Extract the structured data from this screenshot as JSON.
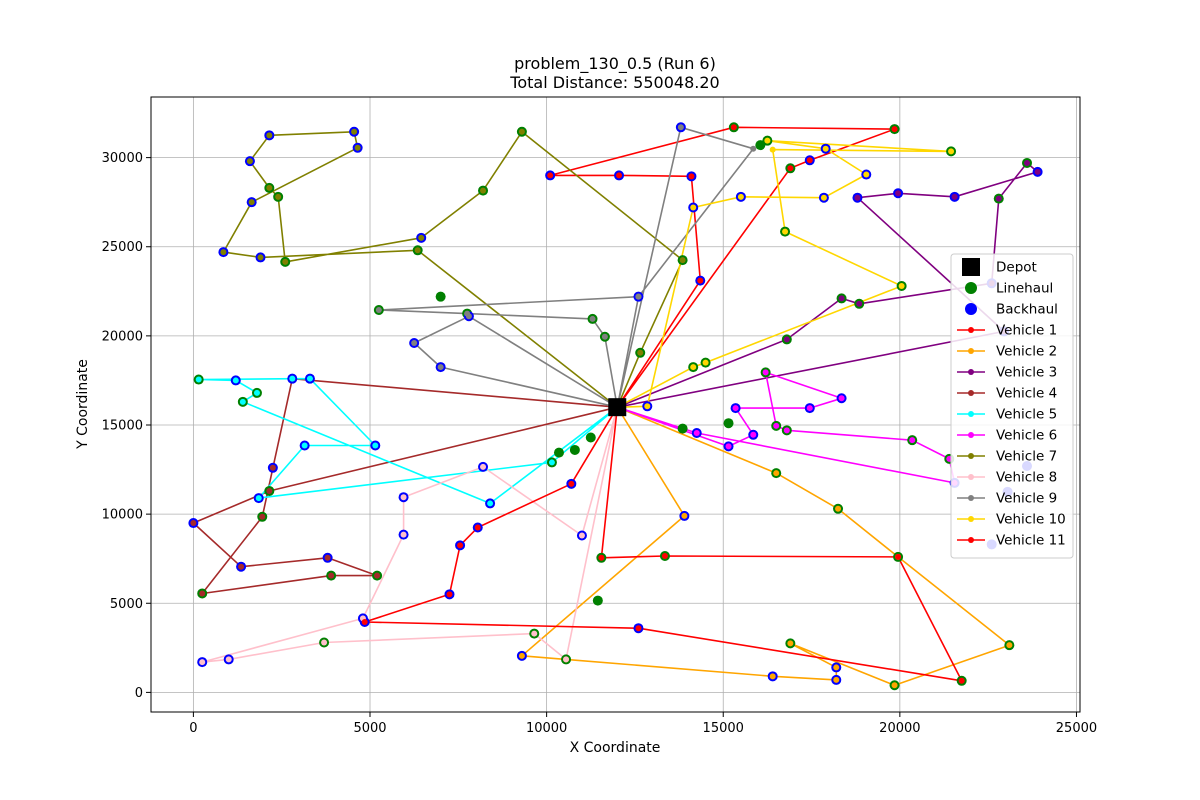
{
  "chart_data": {
    "type": "scatter",
    "title": "problem_130_0.5 (Run 6)",
    "subtitle": "Total Distance: 550048.20",
    "xlabel": "X Coordinate",
    "ylabel": "Y Coordinate",
    "xlim": [
      -1200,
      25100
    ],
    "ylim": [
      -1100,
      33400
    ],
    "xticks": [
      0,
      5000,
      10000,
      15000,
      20000,
      25000
    ],
    "yticks": [
      0,
      5000,
      10000,
      15000,
      20000,
      25000,
      30000
    ],
    "grid": true,
    "legend_position": "right",
    "depot": {
      "label": "Depot",
      "x": 12000,
      "y": 16000,
      "color": "#000000"
    },
    "node_legend": [
      {
        "label": "Linehaul",
        "color": "#008000"
      },
      {
        "label": "Backhaul",
        "color": "#0000ff"
      }
    ],
    "routes": [
      {
        "name": "Vehicle 1",
        "color": "#ff0000",
        "points": [
          [
            12000,
            16000
          ],
          [
            14350,
            23100
          ],
          [
            14100,
            28950
          ],
          [
            12050,
            29000
          ],
          [
            10100,
            29000
          ],
          [
            15300,
            31700
          ],
          [
            19850,
            31600
          ],
          [
            17450,
            29850
          ],
          [
            16900,
            29400
          ],
          [
            12000,
            16000
          ]
        ]
      },
      {
        "name": "Vehicle 2",
        "color": "#ffa500",
        "points": [
          [
            12000,
            16000
          ],
          [
            13900,
            9900
          ],
          [
            9300,
            2050
          ],
          [
            10550,
            1850
          ],
          [
            16400,
            900
          ],
          [
            18200,
            700
          ],
          [
            18200,
            1400
          ],
          [
            16900,
            2750
          ],
          [
            19850,
            400
          ],
          [
            23100,
            2650
          ],
          [
            19950,
            7600
          ],
          [
            18250,
            10300
          ],
          [
            16500,
            12300
          ],
          [
            12000,
            16000
          ]
        ]
      },
      {
        "name": "Vehicle 3",
        "color": "#800080",
        "points": [
          [
            12000,
            16000
          ],
          [
            16800,
            19800
          ],
          [
            18350,
            22100
          ],
          [
            18850,
            21800
          ],
          [
            22600,
            22950
          ],
          [
            22800,
            27700
          ],
          [
            23600,
            29700
          ],
          [
            23900,
            29200
          ],
          [
            21550,
            27800
          ],
          [
            19950,
            28000
          ],
          [
            18800,
            27750
          ],
          [
            22950,
            20250
          ],
          [
            12000,
            16000
          ]
        ]
      },
      {
        "name": "Vehicle 4",
        "color": "#a52a2a",
        "points": [
          [
            12000,
            16000
          ],
          [
            2150,
            11300
          ],
          [
            0,
            9500
          ],
          [
            1350,
            7050
          ],
          [
            3800,
            7550
          ],
          [
            5200,
            6550
          ],
          [
            3900,
            6550
          ],
          [
            250,
            5550
          ],
          [
            1950,
            9850
          ],
          [
            2250,
            12600
          ],
          [
            2800,
            17600
          ],
          [
            12000,
            16000
          ]
        ]
      },
      {
        "name": "Vehicle 5",
        "color": "#00ffff",
        "points": [
          [
            12000,
            16000
          ],
          [
            10150,
            12900
          ],
          [
            1850,
            10900
          ],
          [
            3150,
            13850
          ],
          [
            5150,
            13850
          ],
          [
            3300,
            17600
          ],
          [
            2800,
            17600
          ],
          [
            150,
            17550
          ],
          [
            1200,
            17500
          ],
          [
            1800,
            16800
          ],
          [
            1400,
            16300
          ],
          [
            8400,
            10600
          ],
          [
            12000,
            16000
          ]
        ]
      },
      {
        "name": "Vehicle 6",
        "color": "#ff00ff",
        "points": [
          [
            12000,
            16000
          ],
          [
            15150,
            13800
          ],
          [
            15850,
            14450
          ],
          [
            15350,
            15950
          ],
          [
            17450,
            15950
          ],
          [
            18350,
            16500
          ],
          [
            16200,
            17950
          ],
          [
            16500,
            14950
          ],
          [
            16800,
            14700
          ],
          [
            20350,
            14150
          ],
          [
            21400,
            13100
          ],
          [
            21550,
            11750
          ],
          [
            14250,
            14550
          ],
          [
            12000,
            16000
          ]
        ]
      },
      {
        "name": "Vehicle 7",
        "color": "#808000",
        "points": [
          [
            12000,
            16000
          ],
          [
            12650,
            19050
          ],
          [
            13850,
            24250
          ],
          [
            9300,
            31450
          ],
          [
            8200,
            28150
          ],
          [
            6450,
            25500
          ],
          [
            2600,
            24150
          ],
          [
            2400,
            27800
          ],
          [
            2150,
            28300
          ],
          [
            1600,
            29800
          ],
          [
            2150,
            31250
          ],
          [
            4550,
            31450
          ],
          [
            4650,
            30550
          ],
          [
            1650,
            27500
          ],
          [
            850,
            24700
          ],
          [
            1900,
            24400
          ],
          [
            6350,
            24800
          ],
          [
            12000,
            16000
          ]
        ]
      },
      {
        "name": "Vehicle 8",
        "color": "#ffc0cb",
        "points": [
          [
            12000,
            16000
          ],
          [
            11000,
            8800
          ],
          [
            8200,
            12650
          ],
          [
            5950,
            10950
          ],
          [
            5950,
            8850
          ],
          [
            4800,
            4150
          ],
          [
            250,
            1700
          ],
          [
            1000,
            1850
          ],
          [
            3700,
            2800
          ],
          [
            9650,
            3300
          ],
          [
            10550,
            1850
          ],
          [
            12000,
            16000
          ]
        ]
      },
      {
        "name": "Vehicle 9",
        "color": "#808080",
        "points": [
          [
            12000,
            16000
          ],
          [
            11650,
            19950
          ],
          [
            11300,
            20950
          ],
          [
            7750,
            21250
          ],
          [
            5250,
            21450
          ],
          [
            12600,
            22200
          ],
          [
            12000,
            16000
          ],
          [
            7800,
            21100
          ],
          [
            6250,
            19600
          ],
          [
            7000,
            18250
          ],
          [
            12000,
            16000
          ],
          [
            12600,
            22200
          ],
          [
            15850,
            30500
          ],
          [
            13800,
            31700
          ],
          [
            12000,
            16000
          ]
        ]
      },
      {
        "name": "Vehicle 10",
        "color": "#ffd700",
        "points": [
          [
            12000,
            16000
          ],
          [
            12850,
            16050
          ],
          [
            14150,
            27200
          ],
          [
            15500,
            27800
          ],
          [
            17850,
            27750
          ],
          [
            19050,
            29050
          ],
          [
            17900,
            30500
          ],
          [
            16250,
            30950
          ],
          [
            21450,
            30350
          ],
          [
            16400,
            30450
          ],
          [
            16750,
            25850
          ],
          [
            20050,
            22800
          ],
          [
            14500,
            18500
          ],
          [
            14150,
            18250
          ],
          [
            12000,
            16000
          ]
        ]
      },
      {
        "name": "Vehicle 11",
        "color": "#ff0000",
        "points": [
          [
            12000,
            16000
          ],
          [
            11550,
            7550
          ],
          [
            13350,
            7650
          ],
          [
            19950,
            7600
          ],
          [
            21750,
            650
          ],
          [
            12600,
            3600
          ],
          [
            4850,
            3950
          ],
          [
            7250,
            5500
          ],
          [
            7550,
            8250
          ],
          [
            8050,
            9250
          ],
          [
            10700,
            11700
          ],
          [
            12000,
            16000
          ]
        ]
      }
    ],
    "linehaul": [
      [
        9300,
        31450
      ],
      [
        8200,
        28150
      ],
      [
        6350,
        24800
      ],
      [
        2600,
        24150
      ],
      [
        2400,
        27800
      ],
      [
        2150,
        28300
      ],
      [
        12650,
        19050
      ],
      [
        13850,
        24250
      ],
      [
        16900,
        29400
      ],
      [
        19850,
        31600
      ],
      [
        15300,
        31700
      ],
      [
        16050,
        30700
      ],
      [
        16250,
        30950
      ],
      [
        21450,
        30350
      ],
      [
        16750,
        25850
      ],
      [
        20050,
        22800
      ],
      [
        18350,
        22100
      ],
      [
        18850,
        21800
      ],
      [
        16800,
        19800
      ],
      [
        22800,
        27700
      ],
      [
        23600,
        29700
      ],
      [
        5250,
        21450
      ],
      [
        7000,
        22200
      ],
      [
        7750,
        21250
      ],
      [
        11300,
        20950
      ],
      [
        11650,
        19950
      ],
      [
        14150,
        18250
      ],
      [
        14500,
        18500
      ],
      [
        16200,
        17950
      ],
      [
        15150,
        15100
      ],
      [
        16500,
        14950
      ],
      [
        16800,
        14700
      ],
      [
        20350,
        14150
      ],
      [
        21400,
        13100
      ],
      [
        11250,
        14300
      ],
      [
        10350,
        13450
      ],
      [
        10800,
        13600
      ],
      [
        10150,
        12900
      ],
      [
        13850,
        14800
      ],
      [
        16500,
        12300
      ],
      [
        18250,
        10300
      ],
      [
        19950,
        7600
      ],
      [
        23100,
        2650
      ],
      [
        19850,
        400
      ],
      [
        16900,
        2750
      ],
      [
        21750,
        650
      ],
      [
        11450,
        5150
      ],
      [
        9650,
        3300
      ],
      [
        10550,
        1850
      ],
      [
        3700,
        2800
      ],
      [
        13350,
        7650
      ],
      [
        11550,
        7550
      ],
      [
        5200,
        6550
      ],
      [
        3900,
        6550
      ],
      [
        250,
        5550
      ],
      [
        1950,
        9850
      ],
      [
        2150,
        11300
      ],
      [
        1800,
        16800
      ],
      [
        1400,
        16300
      ],
      [
        150,
        17550
      ]
    ],
    "backhaul": [
      [
        4550,
        31450
      ],
      [
        4650,
        30550
      ],
      [
        1600,
        29800
      ],
      [
        2150,
        31250
      ],
      [
        1650,
        27500
      ],
      [
        850,
        24700
      ],
      [
        1900,
        24400
      ],
      [
        6450,
        25500
      ],
      [
        7800,
        21100
      ],
      [
        6250,
        19600
      ],
      [
        7000,
        18250
      ],
      [
        12600,
        22200
      ],
      [
        10100,
        29000
      ],
      [
        12050,
        29000
      ],
      [
        14100,
        28950
      ],
      [
        14150,
        27200
      ],
      [
        14350,
        23100
      ],
      [
        13800,
        31700
      ],
      [
        15500,
        27800
      ],
      [
        17450,
        29850
      ],
      [
        17900,
        30500
      ],
      [
        17850,
        27750
      ],
      [
        19050,
        29050
      ],
      [
        18800,
        27750
      ],
      [
        19950,
        28000
      ],
      [
        21550,
        27800
      ],
      [
        23900,
        29200
      ],
      [
        22600,
        22950
      ],
      [
        22950,
        20250
      ],
      [
        12850,
        16050
      ],
      [
        15350,
        15950
      ],
      [
        17450,
        15950
      ],
      [
        18350,
        16500
      ],
      [
        15850,
        14450
      ],
      [
        15150,
        13800
      ],
      [
        14250,
        14550
      ],
      [
        21550,
        11750
      ],
      [
        23600,
        12700
      ],
      [
        23050,
        11250
      ],
      [
        22600,
        8300
      ],
      [
        13900,
        9900
      ],
      [
        18200,
        700
      ],
      [
        18200,
        1400
      ],
      [
        16400,
        900
      ],
      [
        12600,
        3600
      ],
      [
        9300,
        2050
      ],
      [
        10700,
        11700
      ],
      [
        11000,
        8800
      ],
      [
        8050,
        9250
      ],
      [
        7550,
        8250
      ],
      [
        7250,
        5500
      ],
      [
        4800,
        4150
      ],
      [
        4850,
        3950
      ],
      [
        8400,
        10600
      ],
      [
        8200,
        12650
      ],
      [
        5950,
        10950
      ],
      [
        5950,
        8850
      ],
      [
        1000,
        1850
      ],
      [
        250,
        1700
      ],
      [
        0,
        9500
      ],
      [
        1350,
        7050
      ],
      [
        3800,
        7550
      ],
      [
        2250,
        12600
      ],
      [
        2800,
        17600
      ],
      [
        3300,
        17600
      ],
      [
        1200,
        17500
      ],
      [
        3150,
        13850
      ],
      [
        5150,
        13850
      ],
      [
        1850,
        10900
      ]
    ]
  }
}
